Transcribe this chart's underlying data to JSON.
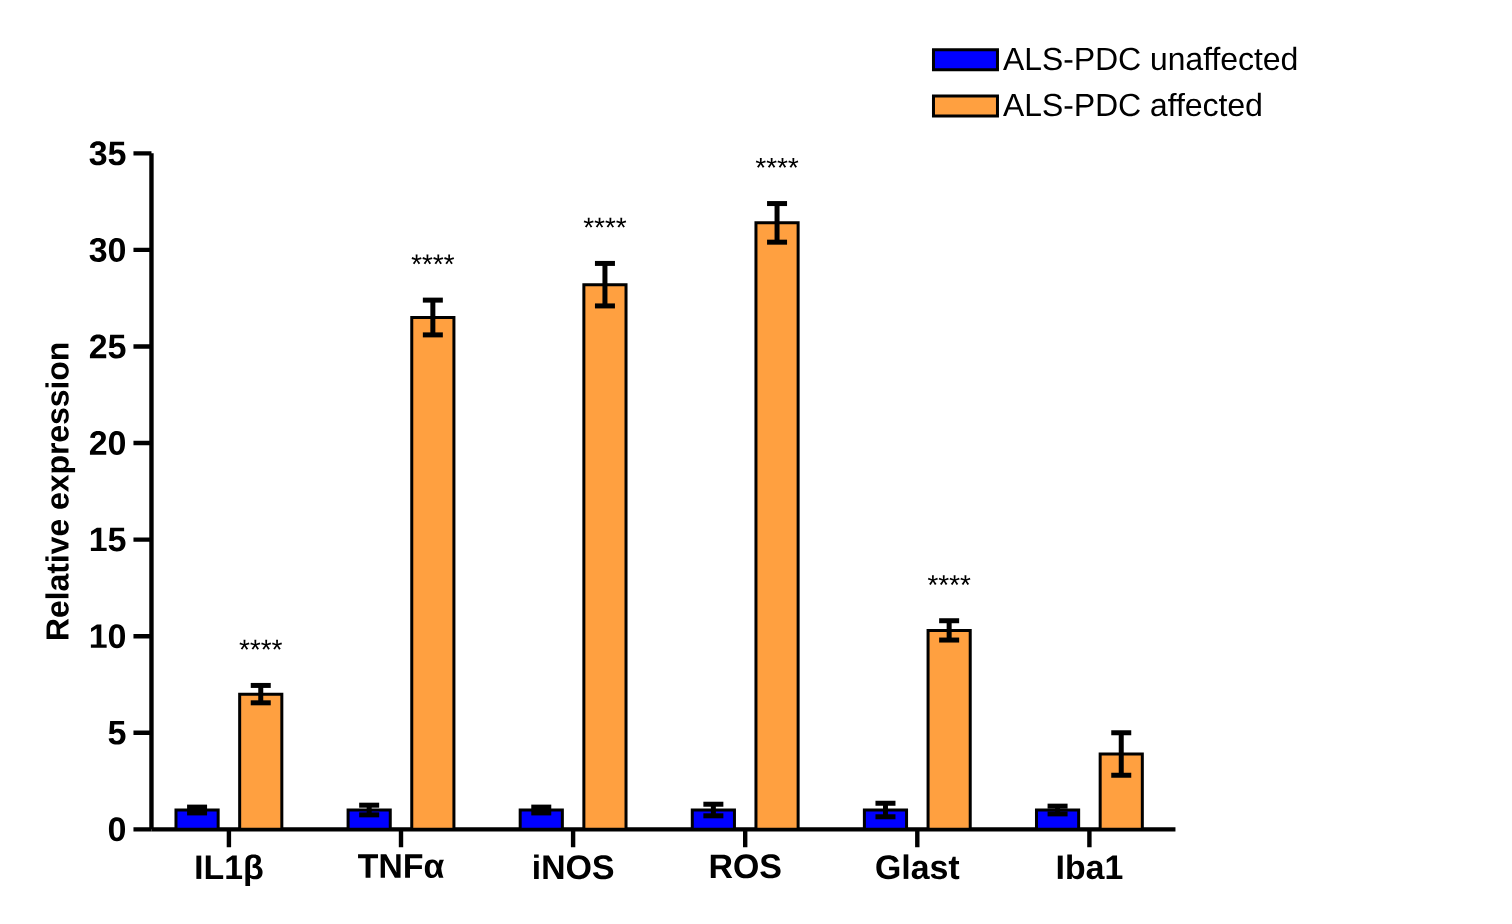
{
  "chart_data": {
    "type": "bar",
    "ylabel": "Relative expression",
    "categories": [
      "IL1β",
      "TNFα",
      "iNOS",
      "ROS",
      "Glast",
      "Iba1"
    ],
    "series": [
      {
        "name": "ALS-PDC unaffected",
        "color": "#0000ff",
        "values": [
          1.0,
          1.0,
          1.0,
          1.0,
          1.0,
          1.0
        ],
        "errors": [
          0.15,
          0.25,
          0.15,
          0.3,
          0.35,
          0.2
        ]
      },
      {
        "name": "ALS-PDC affected",
        "color": "#ffa040",
        "values": [
          7.0,
          26.5,
          28.2,
          31.4,
          10.3,
          3.9
        ],
        "errors": [
          0.45,
          0.9,
          1.1,
          1.0,
          0.5,
          1.1
        ]
      }
    ],
    "ylim": [
      0,
      35
    ],
    "yticks": [
      0,
      5,
      10,
      15,
      20,
      25,
      30,
      35
    ],
    "grid": false,
    "legend": "top right",
    "annotations": [
      "****",
      "****",
      "****",
      "****",
      "****"
    ]
  }
}
